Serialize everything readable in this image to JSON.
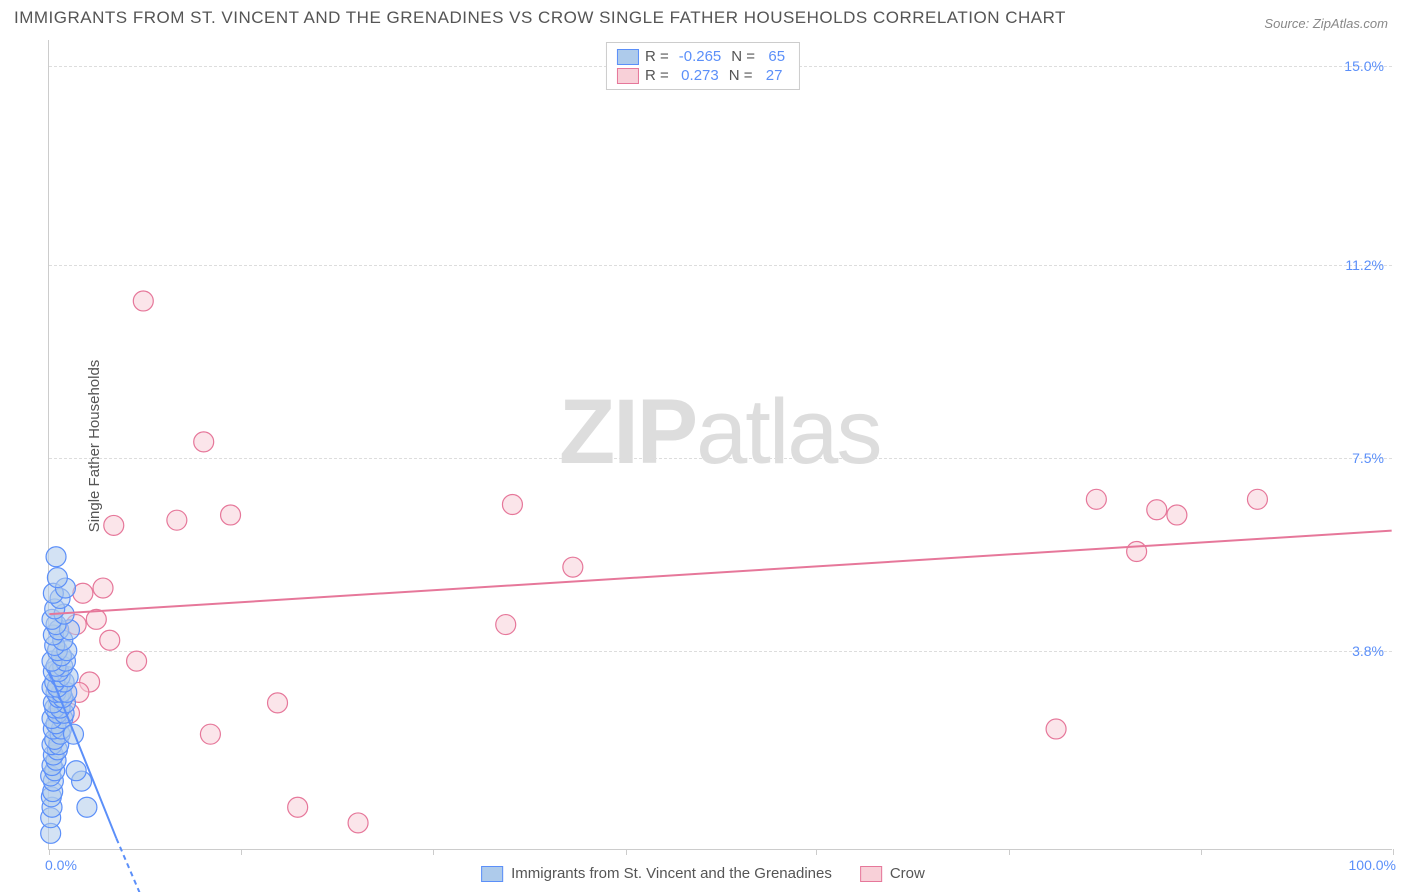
{
  "title": "IMMIGRANTS FROM ST. VINCENT AND THE GRENADINES VS CROW SINGLE FATHER HOUSEHOLDS CORRELATION CHART",
  "source_label": "Source:",
  "source_value": "ZipAtlas.com",
  "ylabel": "Single Father Households",
  "watermark_part1": "ZIP",
  "watermark_part2": "atlas",
  "xlim": [
    0,
    100
  ],
  "ylim": [
    0,
    15.5
  ],
  "ytick_labels": [
    "3.8%",
    "7.5%",
    "11.2%",
    "15.0%"
  ],
  "ytick_values": [
    3.8,
    7.5,
    11.2,
    15.0
  ],
  "xtick_labels_left": "0.0%",
  "xtick_labels_right": "100.0%",
  "xtick_positions": [
    0,
    14.3,
    28.6,
    42.9,
    57.1,
    71.4,
    85.7,
    100
  ],
  "colors": {
    "series_a_fill": "#aecbeb",
    "series_a_stroke": "#5b8ff9",
    "series_b_fill": "#f8d0d8",
    "series_b_stroke": "#e6779a",
    "grid": "#dddddd",
    "axis": "#cccccc",
    "tick_text": "#5b8ff9",
    "label_text": "#555555",
    "trend_a": "#5b8ff9",
    "trend_b": "#e6779a",
    "watermark": "#dddddd"
  },
  "marker_radius": 10,
  "marker_opacity": 0.55,
  "legend_top": [
    {
      "swatch_fill": "#aecbeb",
      "swatch_stroke": "#5b8ff9",
      "r_label": "R =",
      "r_value": "-0.265",
      "n_label": "N =",
      "n_value": "65"
    },
    {
      "swatch_fill": "#f8d0d8",
      "swatch_stroke": "#e6779a",
      "r_label": "R =",
      "r_value": "0.273",
      "n_label": "N =",
      "n_value": "27"
    }
  ],
  "legend_bottom": [
    {
      "swatch_fill": "#aecbeb",
      "swatch_stroke": "#5b8ff9",
      "label": "Immigrants from St. Vincent and the Grenadines"
    },
    {
      "swatch_fill": "#f8d0d8",
      "swatch_stroke": "#e6779a",
      "label": "Crow"
    }
  ],
  "series_a": {
    "name": "Immigrants from St. Vincent and the Grenadines",
    "trend_line": {
      "x1": 0,
      "y1": 3.4,
      "x2": 5,
      "y2": 0.2
    },
    "trend_dash_extension": {
      "x1": 5,
      "y1": 0.2,
      "x2": 8,
      "y2": -1.6
    },
    "points": [
      [
        0.1,
        0.3
      ],
      [
        0.1,
        0.6
      ],
      [
        0.2,
        0.8
      ],
      [
        0.15,
        1.0
      ],
      [
        0.25,
        1.1
      ],
      [
        0.3,
        1.3
      ],
      [
        0.1,
        1.4
      ],
      [
        0.4,
        1.5
      ],
      [
        0.2,
        1.6
      ],
      [
        0.5,
        1.7
      ],
      [
        0.3,
        1.8
      ],
      [
        0.6,
        1.9
      ],
      [
        0.2,
        2.0
      ],
      [
        0.7,
        2.0
      ],
      [
        0.4,
        2.1
      ],
      [
        0.8,
        2.2
      ],
      [
        0.3,
        2.3
      ],
      [
        0.9,
        2.3
      ],
      [
        0.5,
        2.4
      ],
      [
        1.0,
        2.5
      ],
      [
        0.2,
        2.5
      ],
      [
        0.6,
        2.6
      ],
      [
        1.1,
        2.6
      ],
      [
        0.4,
        2.7
      ],
      [
        0.8,
        2.7
      ],
      [
        1.2,
        2.8
      ],
      [
        0.3,
        2.8
      ],
      [
        0.7,
        2.9
      ],
      [
        1.0,
        2.9
      ],
      [
        0.5,
        3.0
      ],
      [
        0.9,
        3.0
      ],
      [
        1.3,
        3.0
      ],
      [
        0.2,
        3.1
      ],
      [
        0.6,
        3.1
      ],
      [
        1.1,
        3.2
      ],
      [
        0.4,
        3.2
      ],
      [
        0.8,
        3.3
      ],
      [
        1.4,
        3.3
      ],
      [
        0.3,
        3.4
      ],
      [
        0.7,
        3.4
      ],
      [
        1.0,
        3.5
      ],
      [
        0.5,
        3.5
      ],
      [
        1.2,
        3.6
      ],
      [
        0.2,
        3.6
      ],
      [
        0.9,
        3.7
      ],
      [
        0.6,
        3.8
      ],
      [
        1.3,
        3.8
      ],
      [
        0.4,
        3.9
      ],
      [
        1.0,
        4.0
      ],
      [
        0.3,
        4.1
      ],
      [
        0.7,
        4.2
      ],
      [
        1.5,
        4.2
      ],
      [
        0.5,
        4.3
      ],
      [
        0.2,
        4.4
      ],
      [
        1.1,
        4.5
      ],
      [
        0.4,
        4.6
      ],
      [
        0.8,
        4.8
      ],
      [
        0.3,
        4.9
      ],
      [
        1.2,
        5.0
      ],
      [
        0.6,
        5.2
      ],
      [
        2.4,
        1.3
      ],
      [
        2.0,
        1.5
      ],
      [
        2.8,
        0.8
      ],
      [
        1.8,
        2.2
      ],
      [
        0.5,
        5.6
      ]
    ]
  },
  "series_b": {
    "name": "Crow",
    "trend_line": {
      "x1": 0,
      "y1": 4.5,
      "x2": 100,
      "y2": 6.1
    },
    "points": [
      [
        2.5,
        4.9
      ],
      [
        4.0,
        5.0
      ],
      [
        4.8,
        6.2
      ],
      [
        6.5,
        3.6
      ],
      [
        7.0,
        10.5
      ],
      [
        9.5,
        6.3
      ],
      [
        11.5,
        7.8
      ],
      [
        12.0,
        2.2
      ],
      [
        13.5,
        6.4
      ],
      [
        17.0,
        2.8
      ],
      [
        18.5,
        0.8
      ],
      [
        23.0,
        0.5
      ],
      [
        34.0,
        4.3
      ],
      [
        34.5,
        6.6
      ],
      [
        39.0,
        5.4
      ],
      [
        75.0,
        2.3
      ],
      [
        78.0,
        6.7
      ],
      [
        81.0,
        5.7
      ],
      [
        82.5,
        6.5
      ],
      [
        84.0,
        6.4
      ],
      [
        90.0,
        6.7
      ],
      [
        2.0,
        4.3
      ],
      [
        4.5,
        4.0
      ],
      [
        1.5,
        2.6
      ],
      [
        3.0,
        3.2
      ],
      [
        2.2,
        3.0
      ],
      [
        3.5,
        4.4
      ]
    ]
  }
}
